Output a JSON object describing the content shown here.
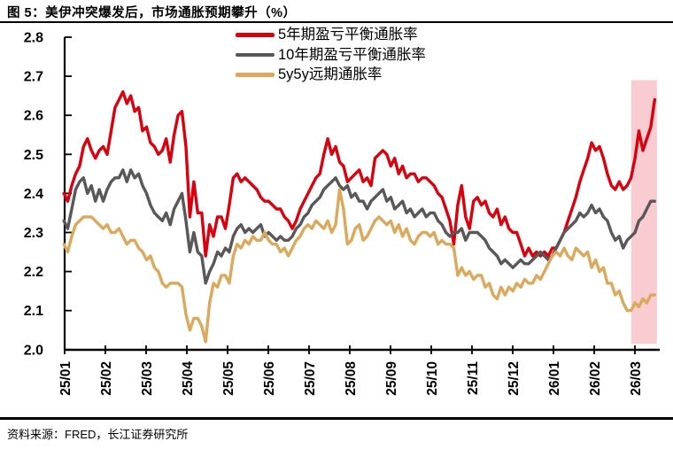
{
  "figure": {
    "title": "图 5：美伊冲突爆发后，市场通胀预期攀升（%）",
    "source": "资料来源：FRED，长江证券研究所"
  },
  "chart_data": {
    "type": "line",
    "title": "美伊冲突爆发后，市场通胀预期攀升（%）",
    "unit": "%",
    "grid": false,
    "legend_position": "top-center",
    "ylim": [
      2.0,
      2.8
    ],
    "y_ticks": [
      2.0,
      2.1,
      2.2,
      2.3,
      2.4,
      2.5,
      2.6,
      2.7,
      2.8
    ],
    "x_tick_labels": [
      "25/01",
      "25/02",
      "25/03",
      "25/04",
      "25/05",
      "25/06",
      "25/07",
      "25/08",
      "25/09",
      "25/10",
      "25/11",
      "25/12",
      "26/01",
      "26/02",
      "26/03"
    ],
    "x_unit": "YY/MM (months, daily data)",
    "t_start": -0.02,
    "t_step": 0.0967,
    "highlight_band": {
      "t0": 13.91,
      "t1": 14.54,
      "v0": 2.015,
      "v1": 2.69,
      "color": "#f8ccd1"
    },
    "series": [
      {
        "name": "5年期盈亏平衡通胀率",
        "color": "#d7000f",
        "values": [
          2.4,
          2.38,
          2.42,
          2.45,
          2.47,
          2.52,
          2.54,
          2.51,
          2.49,
          2.51,
          2.52,
          2.5,
          2.56,
          2.62,
          2.64,
          2.66,
          2.63,
          2.65,
          2.61,
          2.62,
          2.56,
          2.57,
          2.53,
          2.52,
          2.5,
          2.51,
          2.54,
          2.48,
          2.55,
          2.6,
          2.61,
          2.52,
          2.34,
          2.43,
          2.35,
          2.35,
          2.24,
          2.32,
          2.29,
          2.34,
          2.34,
          2.31,
          2.37,
          2.44,
          2.45,
          2.43,
          2.44,
          2.43,
          2.42,
          2.41,
          2.39,
          2.38,
          2.38,
          2.37,
          2.36,
          2.36,
          2.34,
          2.33,
          2.31,
          2.33,
          2.36,
          2.38,
          2.4,
          2.42,
          2.44,
          2.45,
          2.5,
          2.54,
          2.5,
          2.52,
          2.48,
          2.47,
          2.43,
          2.44,
          2.45,
          2.46,
          2.43,
          2.44,
          2.42,
          2.49,
          2.5,
          2.51,
          2.5,
          2.47,
          2.49,
          2.45,
          2.47,
          2.44,
          2.45,
          2.45,
          2.43,
          2.44,
          2.44,
          2.43,
          2.42,
          2.4,
          2.39,
          2.36,
          2.33,
          2.27,
          2.37,
          2.42,
          2.34,
          2.31,
          2.38,
          2.39,
          2.37,
          2.38,
          2.35,
          2.34,
          2.36,
          2.32,
          2.34,
          2.31,
          2.3,
          2.3,
          2.27,
          2.24,
          2.26,
          2.24,
          2.25,
          2.24,
          2.25,
          2.24,
          2.26,
          2.26,
          2.28,
          2.3,
          2.33,
          2.36,
          2.39,
          2.43,
          2.46,
          2.49,
          2.53,
          2.51,
          2.52,
          2.49,
          2.45,
          2.42,
          2.41,
          2.43,
          2.41,
          2.42,
          2.44,
          2.49,
          2.56,
          2.51,
          2.54,
          2.57,
          2.64
        ]
      },
      {
        "name": "10年期盈亏平衡通胀率",
        "color": "#595757",
        "values": [
          2.33,
          2.31,
          2.36,
          2.41,
          2.43,
          2.44,
          2.4,
          2.42,
          2.38,
          2.41,
          2.38,
          2.41,
          2.43,
          2.44,
          2.44,
          2.46,
          2.43,
          2.46,
          2.44,
          2.45,
          2.42,
          2.4,
          2.37,
          2.35,
          2.34,
          2.33,
          2.35,
          2.32,
          2.36,
          2.38,
          2.4,
          2.33,
          2.25,
          2.3,
          2.25,
          2.24,
          2.17,
          2.2,
          2.22,
          2.25,
          2.24,
          2.26,
          2.25,
          2.29,
          2.31,
          2.32,
          2.3,
          2.31,
          2.3,
          2.31,
          2.32,
          2.29,
          2.3,
          2.29,
          2.28,
          2.29,
          2.28,
          2.28,
          2.29,
          2.31,
          2.32,
          2.34,
          2.35,
          2.37,
          2.38,
          2.39,
          2.41,
          2.42,
          2.43,
          2.44,
          2.42,
          2.41,
          2.42,
          2.39,
          2.4,
          2.38,
          2.38,
          2.36,
          2.38,
          2.39,
          2.4,
          2.41,
          2.38,
          2.39,
          2.36,
          2.37,
          2.38,
          2.35,
          2.36,
          2.34,
          2.35,
          2.36,
          2.34,
          2.35,
          2.35,
          2.33,
          2.32,
          2.3,
          2.29,
          2.3,
          2.3,
          2.31,
          2.28,
          2.3,
          2.3,
          2.3,
          2.29,
          2.28,
          2.26,
          2.25,
          2.24,
          2.22,
          2.23,
          2.22,
          2.21,
          2.22,
          2.23,
          2.22,
          2.22,
          2.23,
          2.24,
          2.25,
          2.24,
          2.23,
          2.24,
          2.26,
          2.28,
          2.3,
          2.31,
          2.32,
          2.33,
          2.35,
          2.34,
          2.35,
          2.37,
          2.35,
          2.36,
          2.34,
          2.33,
          2.3,
          2.28,
          2.29,
          2.26,
          2.28,
          2.29,
          2.3,
          2.33,
          2.34,
          2.36,
          2.38,
          2.38
        ]
      },
      {
        "name": "5y5y远期通胀率",
        "color": "#d9a95e",
        "values": [
          2.27,
          2.25,
          2.29,
          2.32,
          2.33,
          2.34,
          2.34,
          2.34,
          2.33,
          2.32,
          2.31,
          2.32,
          2.3,
          2.3,
          2.31,
          2.29,
          2.27,
          2.28,
          2.28,
          2.26,
          2.25,
          2.23,
          2.24,
          2.21,
          2.2,
          2.17,
          2.16,
          2.17,
          2.17,
          2.17,
          2.16,
          2.09,
          2.05,
          2.08,
          2.08,
          2.06,
          2.02,
          2.12,
          2.17,
          2.16,
          2.19,
          2.19,
          2.17,
          2.24,
          2.27,
          2.26,
          2.28,
          2.27,
          2.29,
          2.28,
          2.28,
          2.3,
          2.28,
          2.27,
          2.27,
          2.25,
          2.26,
          2.24,
          2.26,
          2.28,
          2.29,
          2.31,
          2.32,
          2.31,
          2.33,
          2.32,
          2.31,
          2.33,
          2.3,
          2.32,
          2.41,
          2.36,
          2.27,
          2.28,
          2.31,
          2.32,
          2.28,
          2.29,
          2.31,
          2.33,
          2.34,
          2.33,
          2.32,
          2.33,
          2.3,
          2.32,
          2.29,
          2.31,
          2.28,
          2.27,
          2.29,
          2.3,
          2.3,
          2.29,
          2.3,
          2.27,
          2.28,
          2.27,
          2.27,
          2.26,
          2.19,
          2.21,
          2.19,
          2.2,
          2.18,
          2.19,
          2.19,
          2.16,
          2.17,
          2.14,
          2.13,
          2.16,
          2.14,
          2.16,
          2.15,
          2.17,
          2.16,
          2.18,
          2.17,
          2.17,
          2.19,
          2.18,
          2.2,
          2.22,
          2.24,
          2.25,
          2.24,
          2.26,
          2.24,
          2.23,
          2.26,
          2.25,
          2.24,
          2.25,
          2.21,
          2.23,
          2.2,
          2.21,
          2.17,
          2.17,
          2.14,
          2.15,
          2.12,
          2.1,
          2.1,
          2.12,
          2.11,
          2.13,
          2.12,
          2.14,
          2.14
        ]
      }
    ]
  }
}
